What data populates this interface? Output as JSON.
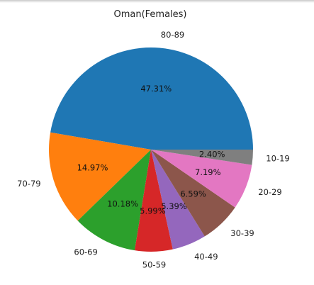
{
  "chart_data": {
    "type": "pie",
    "title": "Oman(Females)",
    "start_angle_deg": 0,
    "direction": "counterclockwise",
    "slices": [
      {
        "label": "80-89",
        "value": 47.31,
        "pct_label": "47.31%",
        "color": "#1f77b4"
      },
      {
        "label": "70-79",
        "value": 14.97,
        "pct_label": "14.97%",
        "color": "#ff7f0e"
      },
      {
        "label": "60-69",
        "value": 10.18,
        "pct_label": "10.18%",
        "color": "#2ca02c"
      },
      {
        "label": "50-59",
        "value": 5.99,
        "pct_label": "5.99%",
        "color": "#d62728"
      },
      {
        "label": "40-49",
        "value": 5.39,
        "pct_label": "5.39%",
        "color": "#9467bd"
      },
      {
        "label": "30-39",
        "value": 6.59,
        "pct_label": "6.59%",
        "color": "#8c564b"
      },
      {
        "label": "20-29",
        "value": 7.19,
        "pct_label": "7.19%",
        "color": "#e377c2"
      },
      {
        "label": "10-19",
        "value": 2.4,
        "pct_label": "2.40%",
        "color": "#7f7f7f"
      }
    ]
  }
}
